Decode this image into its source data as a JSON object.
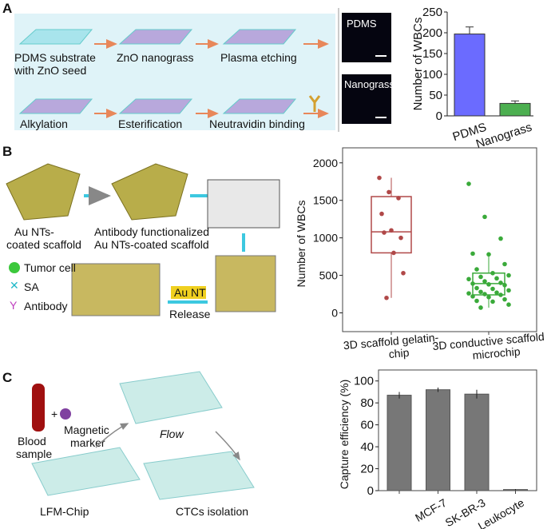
{
  "panels": {
    "A": {
      "label": "A",
      "steps": [
        "PDMS substrate",
        "with ZnO seed",
        "ZnO nanograss",
        "Plasma etching",
        "Alkylation",
        "Esterification",
        "Neutravidin binding"
      ],
      "images": [
        "PDMS",
        "Nanograss"
      ]
    },
    "B": {
      "label": "B",
      "captions": [
        "Au NTs-",
        "coated scaffold",
        "Antibody functionalized",
        "Au NTs-coated scaffold"
      ],
      "legend": [
        "Tumor cell",
        "SA",
        "Antibody"
      ],
      "release_label": "Release",
      "au_nt_label": "Au NT"
    },
    "C": {
      "label": "C",
      "texts": [
        "Blood",
        "sample",
        "+",
        "Magnetic",
        "marker",
        "Flow",
        "LFM-Chip",
        "CTCs isolation"
      ]
    }
  },
  "colors": {
    "pdms_bar": "#6b6bff",
    "nanograss_bar": "#4caf50",
    "box1": "#b04848",
    "box2": "#3aaa3a",
    "bar_c": "#777777",
    "panel_bg": "#dff3f8"
  },
  "chart_data": [
    {
      "type": "bar",
      "categories": [
        "PDMS",
        "Nanograss"
      ],
      "values": [
        197,
        30
      ],
      "errors": [
        17,
        6
      ],
      "ylabel": "Number of WBCs",
      "ylim": [
        0,
        250
      ],
      "yticks": [
        0,
        50,
        100,
        150,
        200,
        250
      ],
      "grid": false
    },
    {
      "type": "box",
      "categories": [
        "3D scaffold gelatin-chip",
        "3D conductive scaffold microchip"
      ],
      "category_lines": [
        [
          "3D scaffold gelatin-",
          "chip"
        ],
        [
          "3D conductive scaffold",
          "microchip"
        ]
      ],
      "boxes": [
        {
          "min": 200,
          "q1": 800,
          "median": 1080,
          "q3": 1550,
          "max": 1800,
          "outliers": []
        },
        {
          "min": 70,
          "q1": 240,
          "median": 390,
          "q3": 530,
          "max": 790,
          "outliers": [
            990,
            1280,
            1720
          ]
        }
      ],
      "points": [
        [
          1800,
          1610,
          1530,
          1320,
          1100,
          1000,
          1070,
          800,
          530,
          200
        ],
        [
          1720,
          1280,
          990,
          790,
          780,
          650,
          580,
          530,
          500,
          480,
          460,
          450,
          420,
          400,
          390,
          380,
          370,
          330,
          320,
          300,
          280,
          270,
          260,
          250,
          240,
          220,
          210,
          180,
          160,
          150,
          110,
          70
        ]
      ],
      "ylabel": "Number of WBCs",
      "ylim": [
        -250,
        2200
      ],
      "yticks": [
        0,
        500,
        1000,
        1500,
        2000
      ],
      "grid": false
    },
    {
      "type": "bar",
      "categories": [
        "",
        "MCF-7",
        "SK-BR-3",
        "Leukocyte"
      ],
      "values": [
        87,
        92,
        88,
        1
      ],
      "errors": [
        3,
        2,
        4,
        0.5
      ],
      "ylabel": "Capture efficiency (%)",
      "ylim": [
        0,
        110
      ],
      "yticks": [
        0,
        20,
        40,
        60,
        80,
        100
      ],
      "grid": false
    }
  ]
}
